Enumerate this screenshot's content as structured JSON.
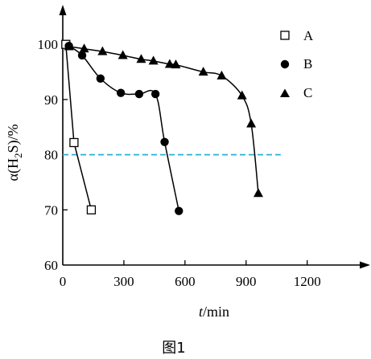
{
  "caption": "图1",
  "chart_data": {
    "type": "line",
    "xlabel": {
      "italic": "t",
      "rest": "/min"
    },
    "ylabel": {
      "prefix": "α(H",
      "sub": "2",
      "suffix": "S)/%"
    },
    "xlim": [
      0,
      1450
    ],
    "ylim": [
      60,
      106
    ],
    "x_ticks": [
      0,
      300,
      600,
      900,
      1200
    ],
    "y_ticks": [
      60,
      70,
      80,
      90,
      100
    ],
    "reference_line": {
      "y": 80,
      "x_from": 0,
      "x_to": 1070,
      "color": "#2ab0d6"
    },
    "series": [
      {
        "name": "A",
        "marker": "square-open",
        "x": [
          15,
          55,
          140
        ],
        "y": [
          100,
          82.2,
          70
        ]
      },
      {
        "name": "B",
        "marker": "circle-filled",
        "x": [
          30,
          95,
          185,
          285,
          375,
          455,
          500,
          570
        ],
        "y": [
          99.7,
          98,
          93.8,
          91.2,
          91,
          91,
          82.3,
          69.8
        ]
      },
      {
        "name": "C",
        "marker": "triangle-filled",
        "x": [
          30,
          105,
          195,
          295,
          385,
          445,
          525,
          555,
          690,
          780,
          880,
          925,
          960
        ],
        "y": [
          99.6,
          99.2,
          98.7,
          98,
          97.3,
          97,
          96.4,
          96.3,
          95,
          94.3,
          90.7,
          85.6,
          73
        ]
      }
    ],
    "legend": {
      "position": "top-right"
    }
  }
}
